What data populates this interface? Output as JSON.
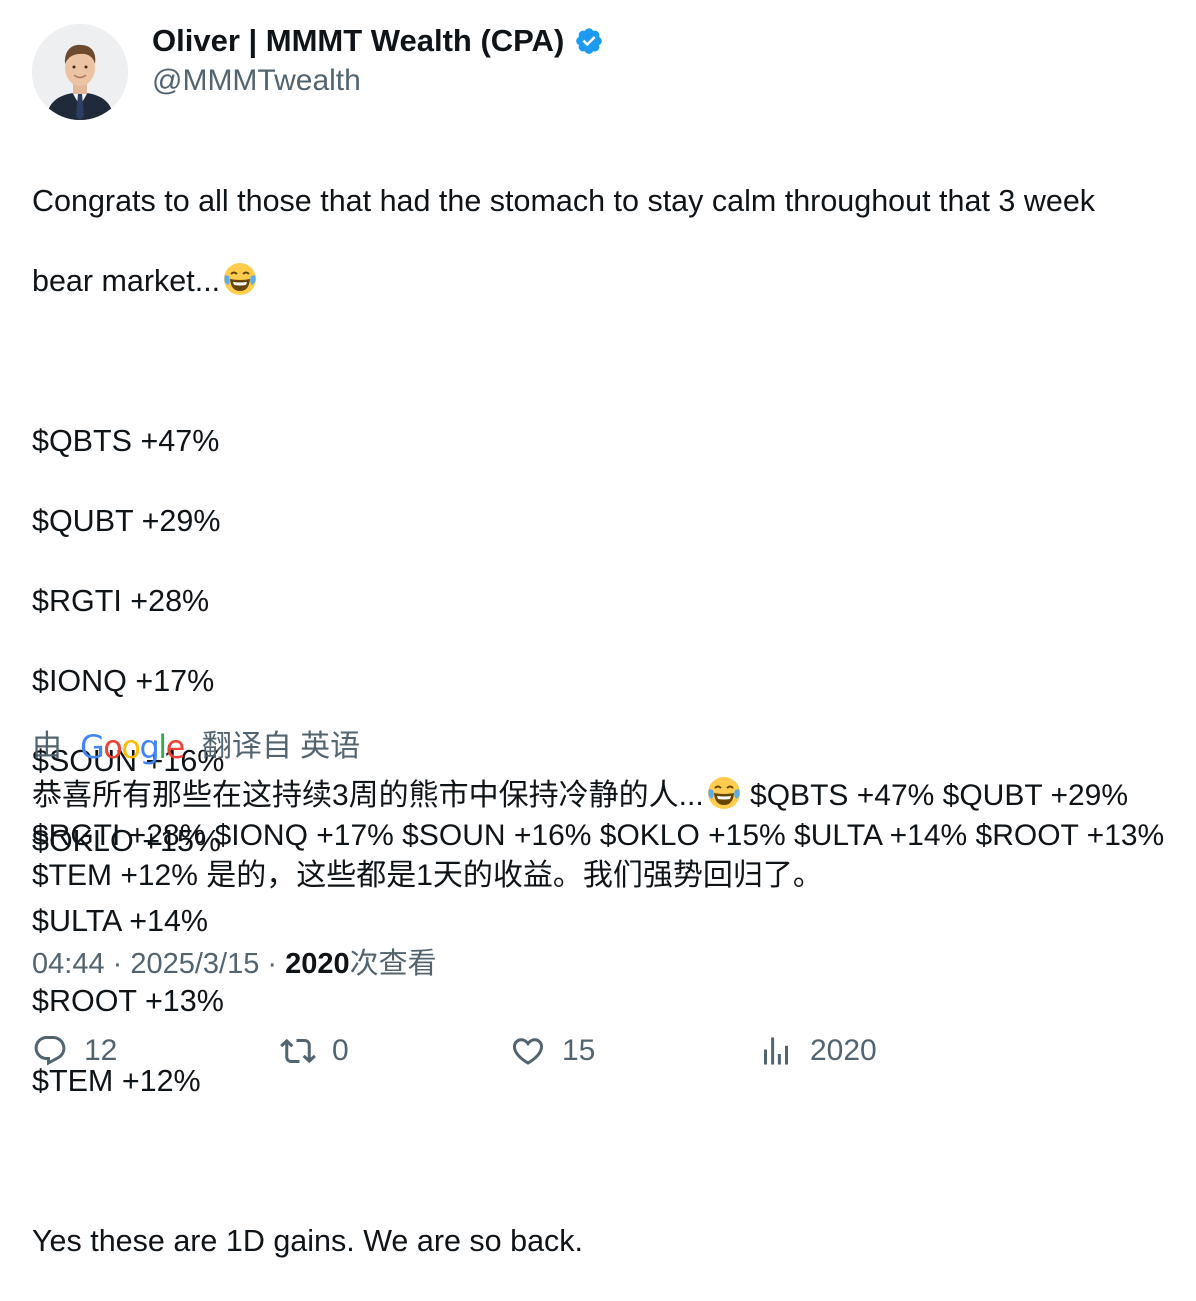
{
  "author": {
    "display_name": "Oliver | MMMT Wealth (CPA)",
    "handle": "@MMMTwealth",
    "verified": true,
    "verified_color": "#1d9bf0",
    "avatar_icon": "person-in-suit-avatar"
  },
  "tweet": {
    "line_1": "Congrats to all those that had the stomach to stay calm throughout that 3 week",
    "line_2": "bear market...",
    "emoji": "face-with-tears-of-joy",
    "tickers": [
      "$QBTS +47%",
      "$QUBT +29%",
      "$RGTI +28%",
      "$IONQ +17%",
      "$SOUN +16%",
      "$OKLO +15%",
      "$ULTA +14%",
      "$ROOT +13%",
      "$TEM +12%"
    ],
    "closing": "Yes these are 1D gains. We are so back."
  },
  "translation": {
    "prefix": "由",
    "brand": "Google",
    "suffix": "翻译自 英语",
    "text_before_emoji": "恭喜所有那些在这持续3周的熊市中保持冷静的人...",
    "text_after_emoji": " $QBTS +47% $QUBT +29% $RGTI +28% $IONQ +17% $SOUN +16% $OKLO +15% $ULTA +14% $ROOT +13% $TEM +12% 是的，这些都是1天的收益。我们强势回归了。"
  },
  "meta": {
    "time": "04:44",
    "date": "2025/3/15",
    "views_count": "2020",
    "views_label": "次查看",
    "separator": " · "
  },
  "actions": {
    "replies": "12",
    "retweets": "0",
    "likes": "15",
    "views": "2020"
  },
  "colors": {
    "text_primary": "#0f1419",
    "text_secondary": "#536471",
    "google_blue": "#4285f4",
    "google_red": "#ea4335",
    "google_yellow": "#fbbc05",
    "google_green": "#34a853"
  }
}
